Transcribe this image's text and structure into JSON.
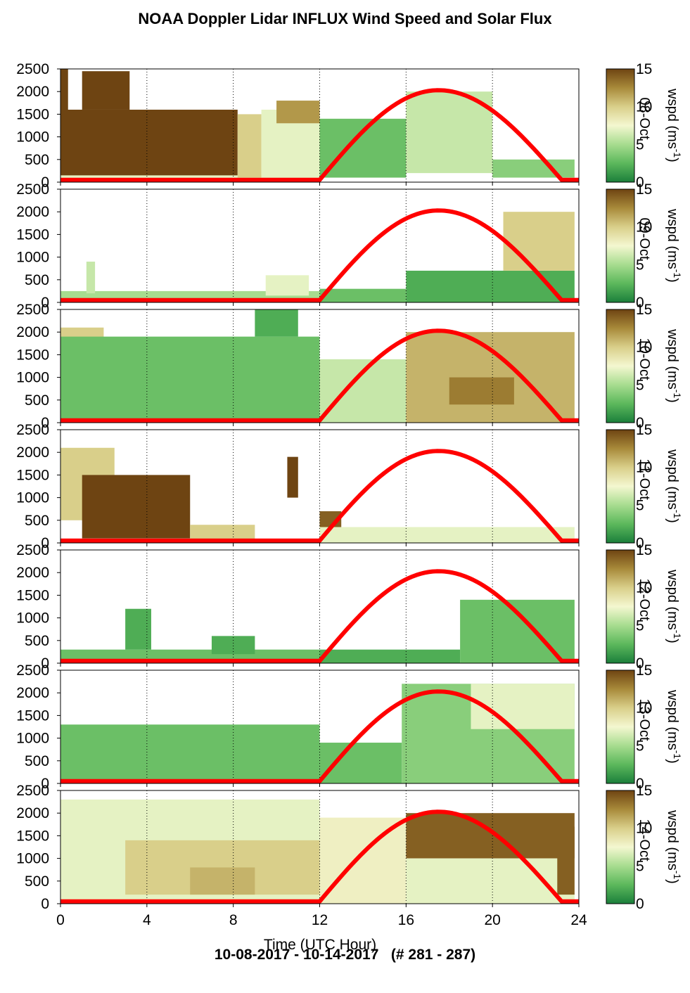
{
  "title": "NOAA Doppler Lidar INFLUX Wind Speed and Solar Flux",
  "footer": "10-08-2017 - 10-14-2017   (# 281 - 287)",
  "chart_data": {
    "type": "heatmap",
    "xlabel": "Time (UTC Hour)",
    "x_ticks": [
      0,
      4,
      8,
      12,
      16,
      20,
      24
    ],
    "xlim": [
      0,
      24
    ],
    "y_ticks": [
      0,
      500,
      1000,
      1500,
      2000,
      2500
    ],
    "ylim": [
      0,
      2500
    ],
    "grid_x": [
      4,
      8,
      12,
      16,
      20,
      24
    ],
    "colorbar": {
      "label": "wspd (ms",
      "label_sup": "-1",
      "label_close": ")",
      "ticks": [
        0,
        5,
        10,
        15
      ],
      "range": [
        0,
        15
      ],
      "colors": [
        "#1b7f3b",
        "#5cb85c",
        "#a7dc8f",
        "#f4f7d0",
        "#d9cf8a",
        "#a88a3a",
        "#6e4412"
      ]
    },
    "solar_flux": {
      "color": "#ff0000",
      "sunrise_hour": 12.0,
      "peak_hour": 17.5,
      "sunset_hour": 23.2,
      "peak_height": 2030,
      "baseline": 50
    },
    "panels": [
      {
        "day": "08-Oct",
        "blobs": [
          {
            "x0": 0.2,
            "x1": 8.2,
            "y0": 100,
            "y1": 1600,
            "v": 15
          },
          {
            "x0": 1.0,
            "x1": 3.2,
            "y0": 1600,
            "y1": 2450,
            "v": 15
          },
          {
            "x0": 0.0,
            "x1": 0.35,
            "y0": 0,
            "y1": 2500,
            "v": 15
          },
          {
            "x0": 0.0,
            "x1": 12.0,
            "y0": 0,
            "y1": 150,
            "v": 7
          },
          {
            "x0": 8.2,
            "x1": 9.3,
            "y0": 100,
            "y1": 1500,
            "v": 10
          },
          {
            "x0": 9.3,
            "x1": 12.0,
            "y0": 100,
            "y1": 1600,
            "v": 7
          },
          {
            "x0": 10.0,
            "x1": 12.0,
            "y0": 1300,
            "y1": 1800,
            "v": 12
          },
          {
            "x0": 12.0,
            "x1": 16.0,
            "y0": 100,
            "y1": 1400,
            "v": 3
          },
          {
            "x0": 16.0,
            "x1": 20.0,
            "y0": 200,
            "y1": 2000,
            "v": 6
          },
          {
            "x0": 20.0,
            "x1": 23.8,
            "y0": 100,
            "y1": 500,
            "v": 4
          }
        ]
      },
      {
        "day": "09-Oct",
        "blobs": [
          {
            "x0": 0.0,
            "x1": 12.0,
            "y0": 0,
            "y1": 250,
            "v": 5
          },
          {
            "x0": 1.2,
            "x1": 1.6,
            "y0": 200,
            "y1": 900,
            "v": 6
          },
          {
            "x0": 9.5,
            "x1": 11.5,
            "y0": 150,
            "y1": 600,
            "v": 7
          },
          {
            "x0": 12.0,
            "x1": 16.0,
            "y0": 0,
            "y1": 300,
            "v": 3
          },
          {
            "x0": 16.0,
            "x1": 23.8,
            "y0": 0,
            "y1": 700,
            "v": 2
          },
          {
            "x0": 20.5,
            "x1": 23.8,
            "y0": 700,
            "y1": 2000,
            "v": 10
          }
        ]
      },
      {
        "day": "10-Oct",
        "blobs": [
          {
            "x0": 0.0,
            "x1": 2.0,
            "y0": 800,
            "y1": 2100,
            "v": 10
          },
          {
            "x0": 0.0,
            "x1": 12.0,
            "y0": 0,
            "y1": 1900,
            "v": 3
          },
          {
            "x0": 9.0,
            "x1": 11.0,
            "y0": 1900,
            "y1": 2500,
            "v": 2
          },
          {
            "x0": 12.0,
            "x1": 16.0,
            "y0": 0,
            "y1": 1400,
            "v": 6
          },
          {
            "x0": 16.0,
            "x1": 23.8,
            "y0": 0,
            "y1": 2000,
            "v": 11
          },
          {
            "x0": 18.0,
            "x1": 21.0,
            "y0": 400,
            "y1": 1000,
            "v": 13
          }
        ]
      },
      {
        "day": "11-Oct",
        "blobs": [
          {
            "x0": 0.0,
            "x1": 2.5,
            "y0": 500,
            "y1": 2100,
            "v": 10
          },
          {
            "x0": 1.0,
            "x1": 6.0,
            "y0": 100,
            "y1": 1500,
            "v": 15
          },
          {
            "x0": 6.0,
            "x1": 9.0,
            "y0": 0,
            "y1": 400,
            "v": 10
          },
          {
            "x0": 10.5,
            "x1": 11.0,
            "y0": 1000,
            "y1": 1900,
            "v": 15
          },
          {
            "x0": 12.0,
            "x1": 13.0,
            "y0": 300,
            "y1": 700,
            "v": 14
          },
          {
            "x0": 12.0,
            "x1": 23.8,
            "y0": 0,
            "y1": 350,
            "v": 7
          }
        ]
      },
      {
        "day": "12-Oct",
        "blobs": [
          {
            "x0": 0.0,
            "x1": 12.0,
            "y0": 0,
            "y1": 300,
            "v": 3
          },
          {
            "x0": 3.0,
            "x1": 4.2,
            "y0": 300,
            "y1": 1200,
            "v": 2
          },
          {
            "x0": 7.0,
            "x1": 9.0,
            "y0": 200,
            "y1": 600,
            "v": 2
          },
          {
            "x0": 12.0,
            "x1": 18.5,
            "y0": 0,
            "y1": 300,
            "v": 2
          },
          {
            "x0": 18.5,
            "x1": 23.8,
            "y0": 0,
            "y1": 1400,
            "v": 3
          }
        ]
      },
      {
        "day": "13-Oct",
        "blobs": [
          {
            "x0": 0.0,
            "x1": 12.0,
            "y0": 0,
            "y1": 1300,
            "v": 3
          },
          {
            "x0": 12.0,
            "x1": 15.8,
            "y0": 0,
            "y1": 900,
            "v": 3
          },
          {
            "x0": 15.8,
            "x1": 23.8,
            "y0": 0,
            "y1": 2200,
            "v": 4
          },
          {
            "x0": 19.0,
            "x1": 23.8,
            "y0": 1200,
            "y1": 2200,
            "v": 7
          }
        ]
      },
      {
        "day": "14-Oct",
        "blobs": [
          {
            "x0": 0.0,
            "x1": 12.0,
            "y0": 0,
            "y1": 2300,
            "v": 7
          },
          {
            "x0": 3.0,
            "x1": 12.0,
            "y0": 200,
            "y1": 1400,
            "v": 10
          },
          {
            "x0": 6.0,
            "x1": 9.0,
            "y0": 200,
            "y1": 800,
            "v": 11
          },
          {
            "x0": 12.0,
            "x1": 16.0,
            "y0": 0,
            "y1": 1900,
            "v": 8
          },
          {
            "x0": 16.0,
            "x1": 23.8,
            "y0": 1000,
            "y1": 2000,
            "v": 14
          },
          {
            "x0": 16.0,
            "x1": 23.8,
            "y0": 0,
            "y1": 1000,
            "v": 7
          },
          {
            "x0": 23.0,
            "x1": 23.8,
            "y0": 200,
            "y1": 1700,
            "v": 14
          }
        ]
      }
    ]
  }
}
